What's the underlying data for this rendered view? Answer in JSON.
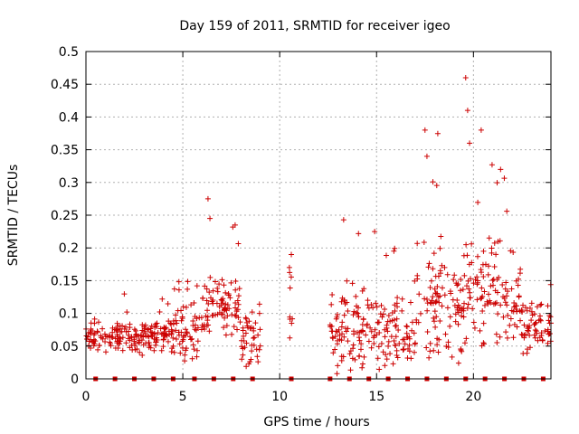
{
  "chart_data": {
    "type": "scatter",
    "title": "Day 159 of 2011, SRMTID for receiver igeo",
    "xlabel": "GPS time / hours",
    "ylabel": "SRMTID / TECUs",
    "xlim": [
      0,
      24
    ],
    "ylim": [
      0,
      0.5
    ],
    "xticks": [
      "0",
      "5",
      "10",
      "15",
      "20"
    ],
    "yticks": [
      "0",
      "0.05",
      "0.1",
      "0.15",
      "0.2",
      "0.25",
      "0.3",
      "0.35",
      "0.4",
      "0.45",
      "0.5"
    ],
    "grid": true,
    "marker": "plus",
    "color": "#cc0000",
    "gap_segments": [
      {
        "x_start": 0.0,
        "x_end": 4.5,
        "median": 0.065,
        "spread": 0.03,
        "max": 0.13
      },
      {
        "x_start": 4.5,
        "x_end": 6.0,
        "median": 0.07,
        "spread": 0.05,
        "max": 0.19
      },
      {
        "x_start": 6.0,
        "x_end": 8.0,
        "median": 0.11,
        "spread": 0.06,
        "max": 0.275
      },
      {
        "x_start": 8.0,
        "x_end": 9.0,
        "median": 0.06,
        "spread": 0.05,
        "max": 0.15
      },
      {
        "x_start": 10.5,
        "x_end": 10.7,
        "median": 0.13,
        "spread": 0.07,
        "max": 0.19
      },
      {
        "x_start": 12.6,
        "x_end": 15.0,
        "median": 0.07,
        "spread": 0.07,
        "max": 0.245
      },
      {
        "x_start": 15.0,
        "x_end": 17.0,
        "median": 0.07,
        "spread": 0.06,
        "max": 0.2
      },
      {
        "x_start": 17.0,
        "x_end": 18.5,
        "median": 0.12,
        "spread": 0.1,
        "max": 0.38
      },
      {
        "x_start": 18.5,
        "x_end": 19.5,
        "median": 0.1,
        "spread": 0.08,
        "max": 0.3
      },
      {
        "x_start": 19.5,
        "x_end": 21.5,
        "median": 0.14,
        "spread": 0.1,
        "max": 0.46
      },
      {
        "x_start": 21.5,
        "x_end": 22.5,
        "median": 0.12,
        "spread": 0.08,
        "max": 0.32
      },
      {
        "x_start": 22.5,
        "x_end": 24.0,
        "median": 0.08,
        "spread": 0.05,
        "max": 0.15
      }
    ],
    "peaks": [
      {
        "x": 6.3,
        "y": 0.275
      },
      {
        "x": 6.4,
        "y": 0.245
      },
      {
        "x": 7.7,
        "y": 0.235
      },
      {
        "x": 13.3,
        "y": 0.243
      },
      {
        "x": 14.9,
        "y": 0.225
      },
      {
        "x": 17.5,
        "y": 0.38
      },
      {
        "x": 17.6,
        "y": 0.34
      },
      {
        "x": 19.6,
        "y": 0.46
      },
      {
        "x": 19.7,
        "y": 0.41
      },
      {
        "x": 19.8,
        "y": 0.36
      },
      {
        "x": 20.4,
        "y": 0.38
      },
      {
        "x": 21.4,
        "y": 0.32
      },
      {
        "x": 10.6,
        "y": 0.19
      },
      {
        "x": 10.5,
        "y": 0.17
      }
    ],
    "zero_markers_x": [
      0.5,
      1.5,
      2.5,
      3.5,
      4.5,
      5.6,
      6.6,
      7.6,
      8.6,
      10.6,
      12.6,
      13.6,
      14.6,
      15.6,
      16.6,
      17.6,
      18.6,
      19.6,
      20.6,
      21.6,
      22.6,
      23.6
    ]
  }
}
